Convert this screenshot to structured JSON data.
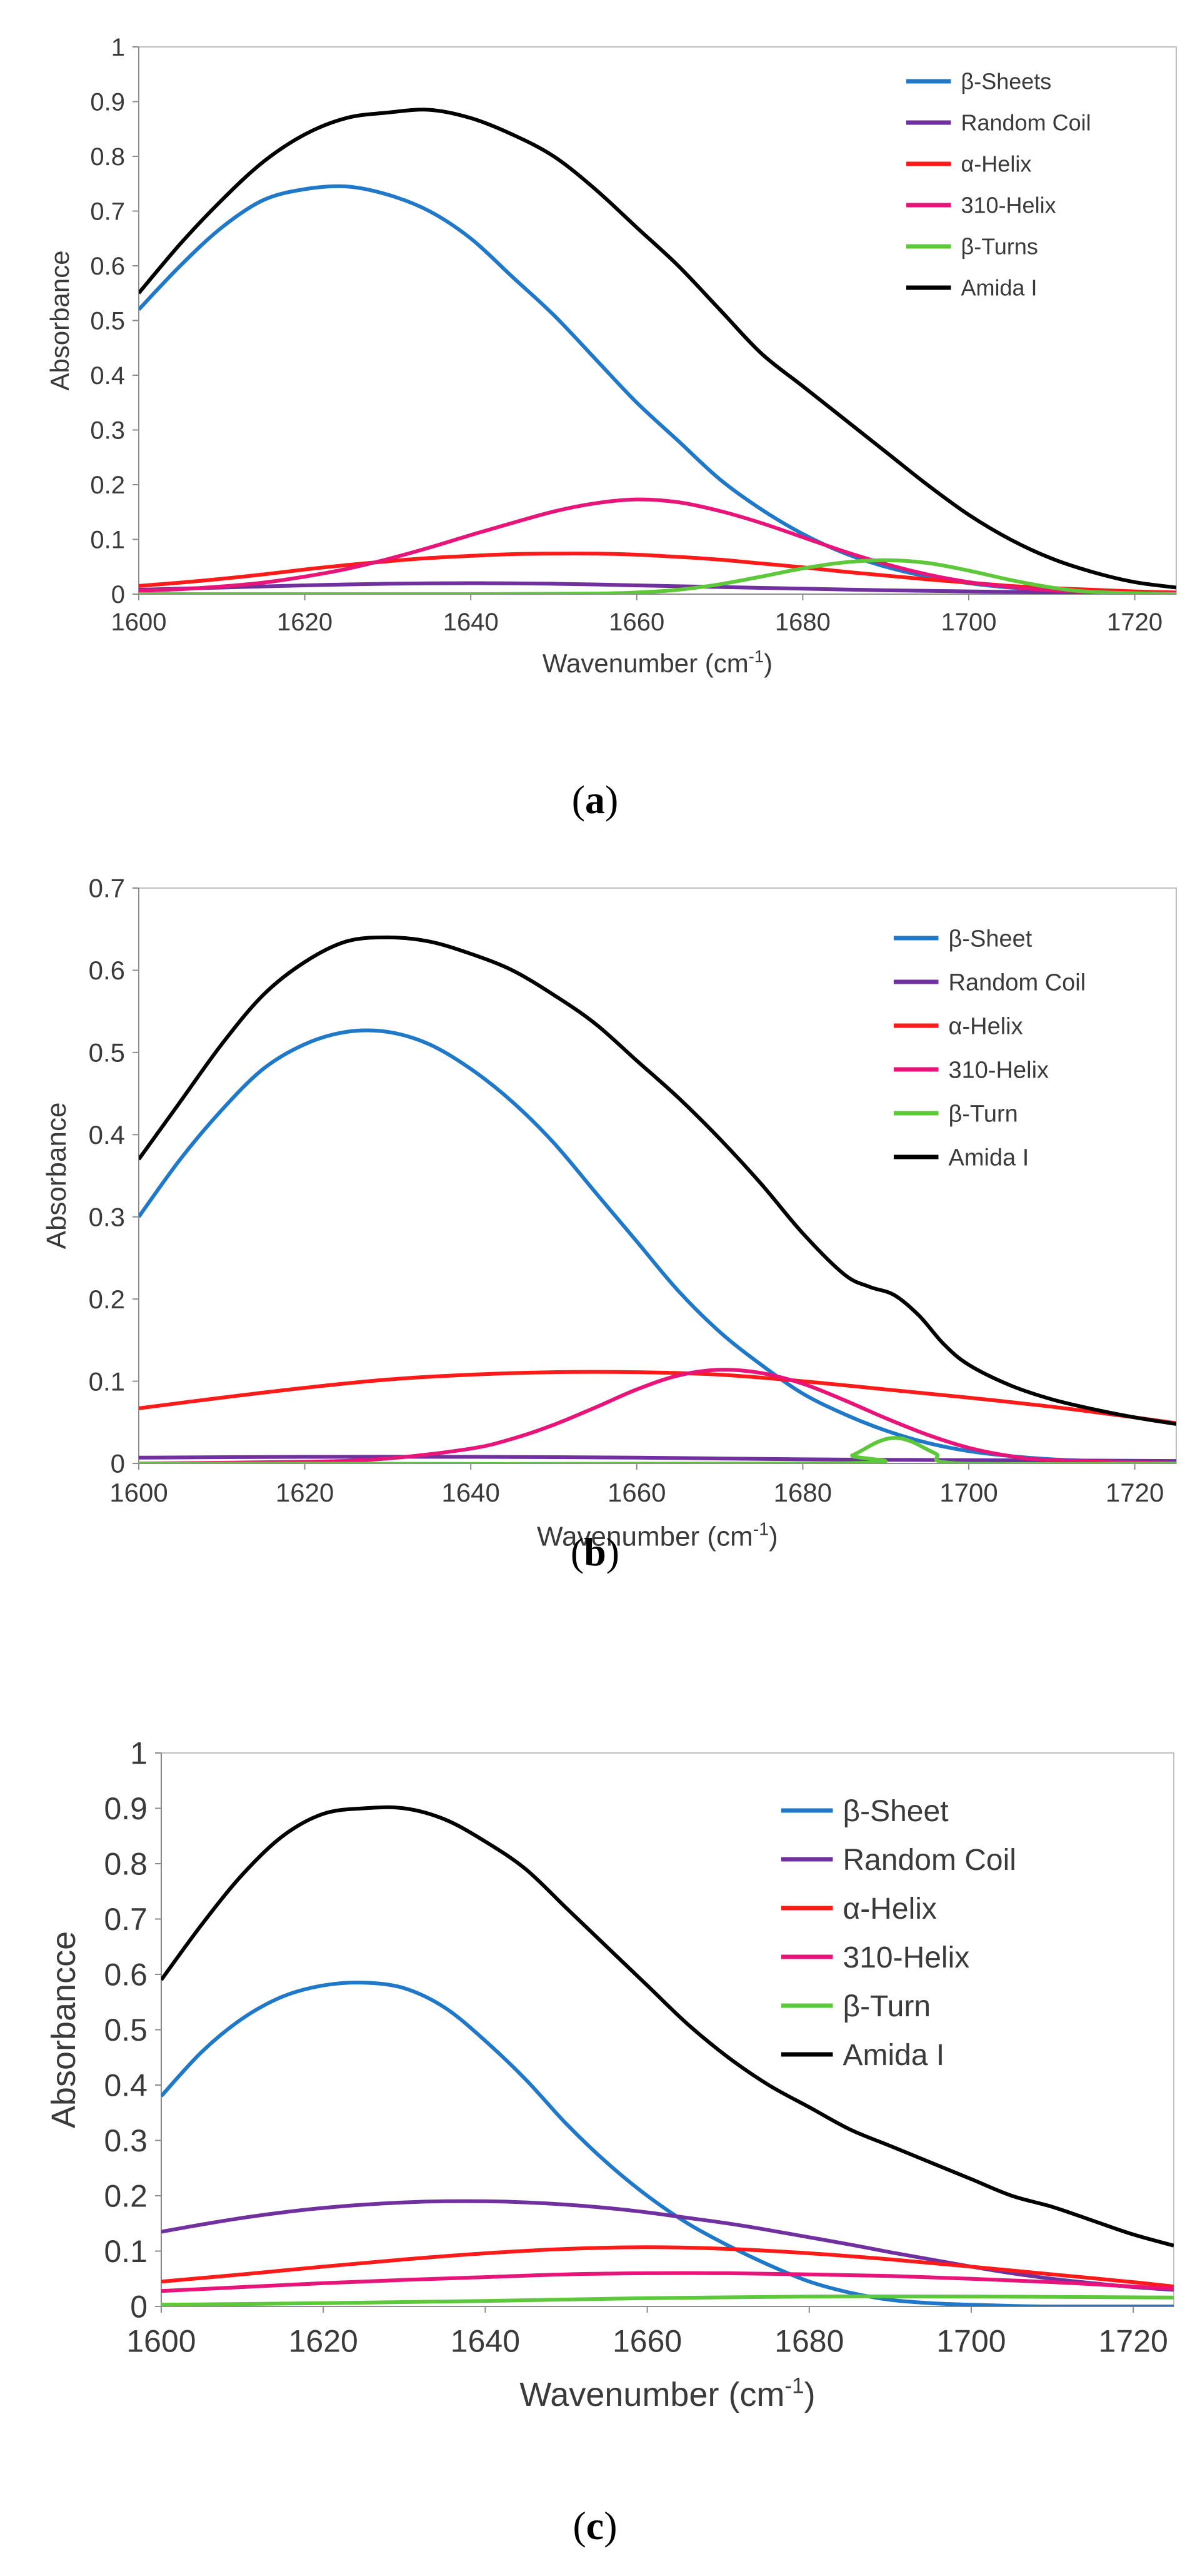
{
  "colors": {
    "beta_sheet": "#1f78c8",
    "random_coil": "#7030a0",
    "alpha_helix": "#ff1a1a",
    "helix_310": "#e8147a",
    "beta_turn": "#5cc83a",
    "amide": "#000000"
  },
  "chart_data": [
    {
      "id": "a",
      "type": "line",
      "caption_open": "(",
      "caption_letter": "a",
      "caption_close": ")",
      "xlabel_main": "Wavenumber (cm",
      "xlabel_sup": "-1",
      "xlabel_end": ")",
      "ylabel": "Absorbance",
      "xlim": [
        1600,
        1725
      ],
      "ylim": [
        0,
        1
      ],
      "xticks": [
        "1600",
        "1620",
        "1640",
        "1660",
        "1680",
        "1700",
        "1720"
      ],
      "yticks": [
        "0",
        "0.1",
        "0.2",
        "0.3",
        "0.4",
        "0.5",
        "0.6",
        "0.7",
        "0.8",
        "0.9",
        "1"
      ],
      "legend_position": "top-right",
      "grid": false,
      "series": [
        {
          "name": "β-Sheets",
          "color_key": "beta_sheet",
          "x": [
            1600,
            1605,
            1610,
            1615,
            1620,
            1625,
            1630,
            1635,
            1640,
            1645,
            1650,
            1655,
            1660,
            1665,
            1670,
            1675,
            1680,
            1685,
            1690,
            1695,
            1700,
            1705,
            1710,
            1715,
            1720,
            1725
          ],
          "values": [
            0.52,
            0.6,
            0.67,
            0.72,
            0.74,
            0.745,
            0.73,
            0.7,
            0.65,
            0.58,
            0.51,
            0.43,
            0.35,
            0.28,
            0.21,
            0.155,
            0.11,
            0.075,
            0.05,
            0.032,
            0.02,
            0.012,
            0.007,
            0.004,
            0.002,
            0.001
          ]
        },
        {
          "name": "Random Coil",
          "color_key": "random_coil",
          "x": [
            1600,
            1610,
            1620,
            1630,
            1640,
            1650,
            1660,
            1670,
            1680,
            1690,
            1700,
            1710,
            1720,
            1725
          ],
          "values": [
            0.008,
            0.012,
            0.016,
            0.019,
            0.02,
            0.019,
            0.016,
            0.013,
            0.01,
            0.007,
            0.005,
            0.003,
            0.002,
            0.002
          ]
        },
        {
          "name": "α-Helix",
          "color_key": "alpha_helix",
          "x": [
            1600,
            1605,
            1610,
            1615,
            1620,
            1625,
            1630,
            1635,
            1640,
            1645,
            1650,
            1655,
            1660,
            1665,
            1670,
            1675,
            1680,
            1685,
            1690,
            1695,
            1700,
            1705,
            1710,
            1715,
            1720,
            1725
          ],
          "values": [
            0.015,
            0.021,
            0.028,
            0.036,
            0.045,
            0.053,
            0.06,
            0.066,
            0.07,
            0.073,
            0.074,
            0.074,
            0.072,
            0.068,
            0.063,
            0.056,
            0.049,
            0.041,
            0.034,
            0.027,
            0.021,
            0.015,
            0.011,
            0.008,
            0.005,
            0.003
          ]
        },
        {
          "name": "310-Helix",
          "color_key": "helix_310",
          "x": [
            1600,
            1605,
            1610,
            1615,
            1620,
            1625,
            1630,
            1635,
            1640,
            1645,
            1650,
            1655,
            1660,
            1665,
            1670,
            1675,
            1680,
            1685,
            1690,
            1695,
            1700,
            1705,
            1710,
            1715,
            1720,
            1725
          ],
          "values": [
            0.006,
            0.009,
            0.014,
            0.021,
            0.032,
            0.046,
            0.064,
            0.085,
            0.108,
            0.13,
            0.151,
            0.166,
            0.173,
            0.168,
            0.152,
            0.13,
            0.104,
            0.078,
            0.055,
            0.036,
            0.022,
            0.013,
            0.007,
            0.004,
            0.002,
            0.001
          ]
        },
        {
          "name": "β-Turns",
          "color_key": "beta_turn",
          "x": [
            1600,
            1640,
            1655,
            1660,
            1665,
            1670,
            1675,
            1680,
            1685,
            1690,
            1695,
            1700,
            1705,
            1710,
            1715,
            1725
          ],
          "values": [
            0,
            0,
            0.001,
            0.003,
            0.008,
            0.018,
            0.032,
            0.047,
            0.058,
            0.062,
            0.057,
            0.043,
            0.026,
            0.012,
            0.004,
            0
          ]
        },
        {
          "name": "Amida I",
          "color_key": "amide",
          "x": [
            1600,
            1605,
            1610,
            1615,
            1620,
            1625,
            1630,
            1635,
            1640,
            1645,
            1650,
            1655,
            1660,
            1665,
            1670,
            1675,
            1680,
            1685,
            1690,
            1695,
            1700,
            1705,
            1710,
            1715,
            1720,
            1725
          ],
          "values": [
            0.55,
            0.64,
            0.72,
            0.79,
            0.84,
            0.87,
            0.88,
            0.885,
            0.87,
            0.84,
            0.8,
            0.74,
            0.67,
            0.6,
            0.52,
            0.44,
            0.38,
            0.32,
            0.26,
            0.2,
            0.145,
            0.1,
            0.065,
            0.04,
            0.022,
            0.012
          ]
        }
      ]
    },
    {
      "id": "b",
      "type": "line",
      "caption_open": "(",
      "caption_letter": "b",
      "caption_close": ")",
      "xlabel_main": "Wavenumber (cm",
      "xlabel_sup": "-1",
      "xlabel_end": ")",
      "ylabel": "Absorbance",
      "xlim": [
        1600,
        1725
      ],
      "ylim": [
        0,
        0.7
      ],
      "xticks": [
        "1600",
        "1620",
        "1640",
        "1660",
        "1680",
        "1700",
        "1720"
      ],
      "yticks": [
        "0",
        "0.1",
        "0.2",
        "0.3",
        "0.4",
        "0.5",
        "0.6",
        "0.7"
      ],
      "legend_position": "top-right",
      "grid": false,
      "series": [
        {
          "name": "β-Sheet",
          "color_key": "beta_sheet",
          "x": [
            1600,
            1605,
            1610,
            1615,
            1620,
            1625,
            1630,
            1635,
            1640,
            1645,
            1650,
            1655,
            1660,
            1665,
            1670,
            1675,
            1680,
            1685,
            1690,
            1695,
            1700,
            1705,
            1710,
            1715,
            1720,
            1725
          ],
          "values": [
            0.3,
            0.37,
            0.43,
            0.48,
            0.51,
            0.525,
            0.525,
            0.51,
            0.48,
            0.44,
            0.39,
            0.33,
            0.27,
            0.21,
            0.16,
            0.12,
            0.085,
            0.06,
            0.04,
            0.025,
            0.015,
            0.009,
            0.005,
            0.003,
            0.002,
            0.001
          ]
        },
        {
          "name": "Random Coil",
          "color_key": "random_coil",
          "x": [
            1600,
            1620,
            1640,
            1660,
            1680,
            1700,
            1725
          ],
          "values": [
            0.007,
            0.008,
            0.008,
            0.007,
            0.005,
            0.004,
            0.003
          ]
        },
        {
          "name": "α-Helix",
          "color_key": "alpha_helix",
          "x": [
            1600,
            1610,
            1620,
            1630,
            1640,
            1650,
            1660,
            1670,
            1680,
            1690,
            1700,
            1710,
            1720,
            1725
          ],
          "values": [
            0.067,
            0.08,
            0.092,
            0.102,
            0.108,
            0.111,
            0.111,
            0.108,
            0.1,
            0.09,
            0.08,
            0.069,
            0.056,
            0.049
          ]
        },
        {
          "name": "310-Helix",
          "color_key": "helix_310",
          "x": [
            1600,
            1620,
            1630,
            1640,
            1645,
            1650,
            1655,
            1660,
            1665,
            1670,
            1675,
            1680,
            1685,
            1690,
            1695,
            1700,
            1705,
            1710,
            1725
          ],
          "values": [
            0,
            0.002,
            0.006,
            0.018,
            0.03,
            0.047,
            0.068,
            0.09,
            0.107,
            0.114,
            0.11,
            0.097,
            0.077,
            0.055,
            0.035,
            0.019,
            0.009,
            0.004,
            0
          ]
        },
        {
          "name": "β-Turn",
          "color_key": "beta_turn",
          "x": [
            1600,
            1683,
            1686,
            1689,
            1691,
            1693,
            1696,
            1699,
            1725
          ],
          "values": [
            0,
            0,
            0.01,
            0.026,
            0.031,
            0.027,
            0.012,
            0,
            0
          ]
        },
        {
          "name": "Amida I",
          "color_key": "amide",
          "x": [
            1600,
            1605,
            1610,
            1615,
            1620,
            1625,
            1630,
            1635,
            1640,
            1645,
            1650,
            1655,
            1660,
            1665,
            1670,
            1675,
            1680,
            1685,
            1688,
            1691,
            1694,
            1697,
            1700,
            1705,
            1710,
            1715,
            1720,
            1725
          ],
          "values": [
            0.37,
            0.44,
            0.51,
            0.57,
            0.61,
            0.635,
            0.64,
            0.635,
            0.62,
            0.6,
            0.57,
            0.535,
            0.49,
            0.445,
            0.395,
            0.34,
            0.28,
            0.23,
            0.215,
            0.205,
            0.18,
            0.145,
            0.12,
            0.095,
            0.078,
            0.066,
            0.056,
            0.048
          ]
        }
      ]
    },
    {
      "id": "c",
      "type": "line",
      "caption_open": "(",
      "caption_letter": "c",
      "caption_close": ")",
      "xlabel_main": "Wavenumber (cm",
      "xlabel_sup": "-1",
      "xlabel_end": ")",
      "ylabel": "Absorbancce",
      "xlim": [
        1600,
        1725
      ],
      "ylim": [
        0,
        1
      ],
      "xticks": [
        "1600",
        "1620",
        "1640",
        "1660",
        "1680",
        "1700",
        "1720"
      ],
      "yticks": [
        "0",
        "0.1",
        "0.2",
        "0.3",
        "0.4",
        "0.5",
        "0.6",
        "0.7",
        "0.8",
        "0.9",
        "1"
      ],
      "legend_position": "top-right",
      "grid": false,
      "series": [
        {
          "name": "β-Sheet",
          "color_key": "beta_sheet",
          "x": [
            1600,
            1605,
            1610,
            1615,
            1620,
            1625,
            1630,
            1635,
            1640,
            1645,
            1650,
            1655,
            1660,
            1665,
            1670,
            1675,
            1680,
            1685,
            1690,
            1695,
            1700,
            1705,
            1710,
            1725
          ],
          "values": [
            0.38,
            0.46,
            0.52,
            0.56,
            0.58,
            0.585,
            0.575,
            0.54,
            0.48,
            0.41,
            0.33,
            0.26,
            0.2,
            0.15,
            0.11,
            0.075,
            0.045,
            0.025,
            0.012,
            0.006,
            0.003,
            0.001,
            0,
            0
          ]
        },
        {
          "name": "Random Coil",
          "color_key": "random_coil",
          "x": [
            1600,
            1605,
            1610,
            1615,
            1620,
            1625,
            1630,
            1635,
            1640,
            1645,
            1650,
            1655,
            1660,
            1665,
            1670,
            1675,
            1680,
            1685,
            1690,
            1695,
            1700,
            1705,
            1710,
            1715,
            1720,
            1725
          ],
          "values": [
            0.135,
            0.148,
            0.16,
            0.17,
            0.178,
            0.184,
            0.188,
            0.19,
            0.19,
            0.188,
            0.184,
            0.178,
            0.17,
            0.16,
            0.15,
            0.138,
            0.125,
            0.112,
            0.098,
            0.085,
            0.072,
            0.06,
            0.05,
            0.042,
            0.035,
            0.03
          ]
        },
        {
          "name": "α-Helix",
          "color_key": "alpha_helix",
          "x": [
            1600,
            1610,
            1620,
            1630,
            1640,
            1650,
            1660,
            1670,
            1680,
            1690,
            1700,
            1710,
            1720,
            1725
          ],
          "values": [
            0.045,
            0.058,
            0.072,
            0.085,
            0.096,
            0.104,
            0.107,
            0.104,
            0.096,
            0.085,
            0.072,
            0.058,
            0.044,
            0.036
          ]
        },
        {
          "name": "310-Helix",
          "color_key": "helix_310",
          "x": [
            1600,
            1610,
            1620,
            1630,
            1640,
            1650,
            1660,
            1670,
            1680,
            1690,
            1700,
            1710,
            1720,
            1725
          ],
          "values": [
            0.028,
            0.035,
            0.042,
            0.048,
            0.053,
            0.058,
            0.06,
            0.06,
            0.058,
            0.055,
            0.05,
            0.044,
            0.036,
            0.032
          ]
        },
        {
          "name": "β-Turn",
          "color_key": "beta_turn",
          "x": [
            1600,
            1620,
            1640,
            1660,
            1680,
            1700,
            1725
          ],
          "values": [
            0.003,
            0.006,
            0.01,
            0.015,
            0.018,
            0.018,
            0.016
          ]
        },
        {
          "name": "Amida I",
          "color_key": "amide",
          "x": [
            1600,
            1605,
            1610,
            1615,
            1620,
            1625,
            1630,
            1635,
            1640,
            1645,
            1650,
            1655,
            1660,
            1665,
            1670,
            1675,
            1680,
            1685,
            1690,
            1695,
            1700,
            1705,
            1710,
            1715,
            1720,
            1725
          ],
          "values": [
            0.59,
            0.69,
            0.78,
            0.85,
            0.89,
            0.9,
            0.9,
            0.88,
            0.84,
            0.79,
            0.72,
            0.65,
            0.58,
            0.51,
            0.45,
            0.4,
            0.36,
            0.32,
            0.29,
            0.26,
            0.23,
            0.2,
            0.18,
            0.155,
            0.13,
            0.11
          ]
        }
      ]
    }
  ]
}
